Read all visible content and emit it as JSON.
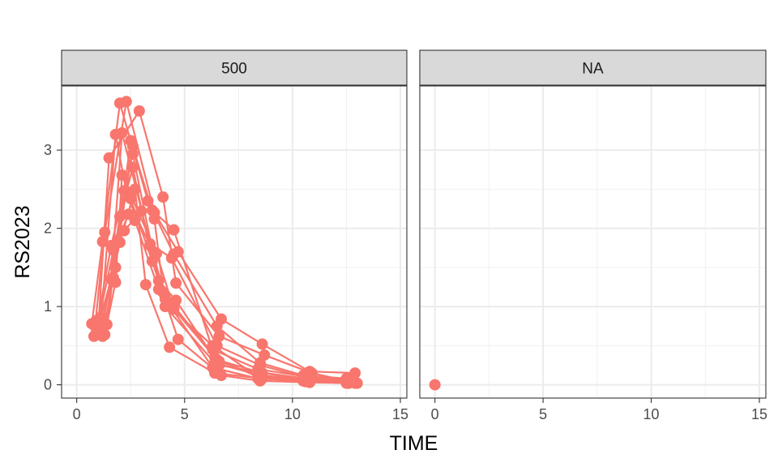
{
  "chart_data": {
    "type": "line",
    "xlabel": "TIME",
    "ylabel": "RS2023",
    "xlim": [
      -0.7,
      15.3
    ],
    "ylim": [
      -0.17,
      3.82
    ],
    "x_ticks": [
      0,
      5,
      10,
      15
    ],
    "y_ticks": [
      0,
      1,
      2,
      3
    ],
    "grid": true,
    "legend": "none",
    "series_color": "#F8766D",
    "panels": [
      {
        "strip_label": "500",
        "series": [
          {
            "x": [
              0.7,
              1.2,
              2.0,
              3.3,
              4.5,
              6.5,
              8.5,
              10.5,
              12.5
            ],
            "y": [
              0.78,
              1.83,
              3.6,
              2.35,
              1.67,
              0.75,
              0.28,
              0.12,
              0.08
            ]
          },
          {
            "x": [
              0.8,
              1.3,
              2.3,
              3.6,
              4.7,
              6.7,
              8.6,
              10.8,
              12.9
            ],
            "y": [
              0.62,
              1.95,
              3.62,
              2.2,
              1.7,
              0.84,
              0.52,
              0.17,
              0.15
            ]
          },
          {
            "x": [
              0.9,
              1.4,
              2.5,
              3.5,
              4.5,
              6.3,
              8.4,
              10.7,
              12.8
            ],
            "y": [
              0.82,
              0.77,
              3.12,
              2.23,
              1.98,
              0.45,
              0.2,
              0.1,
              0.05
            ]
          },
          {
            "x": [
              1.0,
              1.5,
              2.9,
              4.0,
              4.6,
              6.6,
              8.7,
              10.9,
              13.0
            ],
            "y": [
              0.74,
              2.9,
              3.5,
              2.4,
              1.3,
              0.62,
              0.38,
              0.15,
              0.02
            ]
          },
          {
            "x": [
              1.1,
              1.6,
              2.1,
              3.4,
              4.4,
              6.5,
              8.5,
              10.5,
              12.5
            ],
            "y": [
              0.86,
              1.35,
              3.22,
              1.8,
              1.62,
              0.5,
              0.25,
              0.1,
              0.06
            ]
          },
          {
            "x": [
              1.2,
              1.7,
              2.6,
              3.6,
              4.1,
              6.4,
              8.5,
              10.6,
              12.7
            ],
            "y": [
              0.62,
              1.37,
              3.05,
              2.12,
              1.0,
              0.28,
              0.12,
              0.07,
              0.03
            ]
          },
          {
            "x": [
              1.3,
              1.8,
              2.1,
              3.7,
              4.5,
              6.4,
              8.4,
              10.5,
              12.6
            ],
            "y": [
              0.64,
              1.31,
              2.68,
              1.68,
              0.97,
              0.35,
              0.1,
              0.05,
              0.04
            ]
          },
          {
            "x": [
              0.9,
              1.6,
              2.6,
              3.8,
              4.6,
              6.6,
              8.5,
              10.6,
              12.8
            ],
            "y": [
              0.72,
              1.78,
              2.95,
              1.33,
              1.08,
              0.25,
              0.16,
              0.08,
              0.03
            ]
          },
          {
            "x": [
              1.0,
              1.8,
              2.2,
              3.4,
              4.1,
              6.3,
              8.4,
              10.5,
              12.5
            ],
            "y": [
              0.75,
              1.5,
              2.48,
              1.78,
              1.1,
              0.22,
              0.08,
              0.05,
              0.02
            ]
          },
          {
            "x": [
              1.1,
              2.0,
              2.7,
              3.2,
              4.3,
              6.4,
              8.6,
              10.6,
              12.6
            ],
            "y": [
              0.68,
              1.82,
              2.5,
              1.28,
              0.48,
              0.15,
              0.08,
              0.04,
              0.02
            ]
          },
          {
            "x": [
              1.2,
              2.0,
              2.6,
              3.5,
              4.7,
              6.7,
              8.5,
              10.8,
              12.9
            ],
            "y": [
              0.72,
              2.15,
              2.78,
              1.58,
              0.58,
              0.12,
              0.05,
              0.03,
              0.02
            ]
          },
          {
            "x": [
              1.0,
              1.7,
              2.2,
              3.0,
              4.2,
              6.3,
              8.4,
              10.6,
              12.7
            ],
            "y": [
              0.8,
              1.72,
              1.97,
              2.22,
              1.02,
              0.5,
              0.1,
              0.06,
              0.03
            ]
          },
          {
            "x": [
              1.1,
              1.8,
              2.3,
              2.5,
              4.0,
              6.5,
              8.6,
              10.7,
              12.8
            ],
            "y": [
              0.7,
              3.2,
              2.47,
              2.38,
              1.18,
              0.32,
              0.15,
              0.07,
              0.04
            ]
          },
          {
            "x": [
              1.2,
              1.9,
              2.4,
              2.7,
              3.8,
              6.6,
              8.4,
              10.5,
              12.6
            ],
            "y": [
              0.8,
              1.85,
              2.18,
              2.1,
              1.22,
              0.3,
              0.12,
              0.06,
              0.02
            ]
          }
        ]
      },
      {
        "strip_label": "NA",
        "series": [
          {
            "x": [
              0
            ],
            "y": [
              0
            ]
          }
        ]
      }
    ]
  }
}
